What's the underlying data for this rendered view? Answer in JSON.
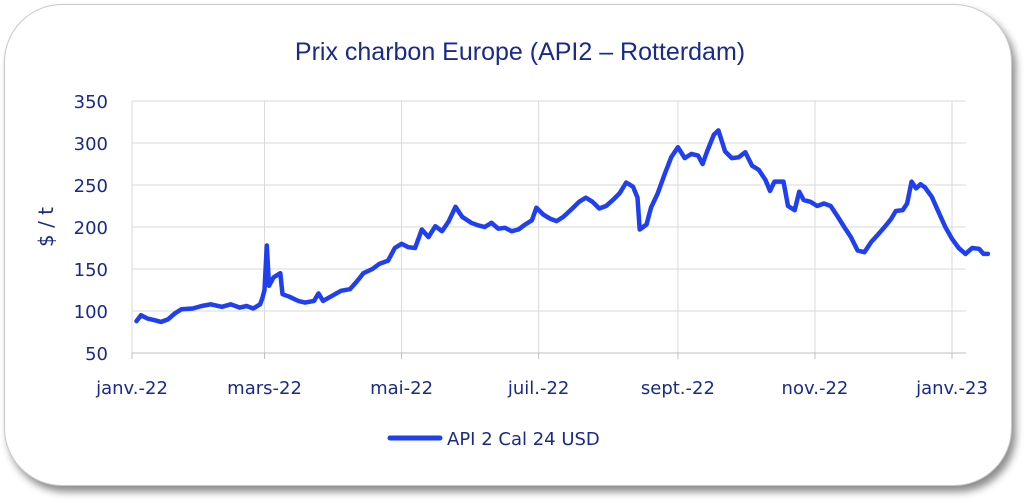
{
  "chart_data": {
    "type": "line",
    "title": "Prix charbon Europe (API2 – Rotterdam)",
    "ylabel": "$ / t",
    "xlabel": "",
    "ylim": [
      50,
      350
    ],
    "yticks": [
      50,
      100,
      150,
      200,
      250,
      300,
      350
    ],
    "xlim": [
      "2022-01-01",
      "2023-01-05"
    ],
    "xticks": [
      {
        "date": "2022-01-01",
        "label": "janv.-22"
      },
      {
        "date": "2022-03-01",
        "label": "mars-22"
      },
      {
        "date": "2022-05-01",
        "label": "mai-22"
      },
      {
        "date": "2022-07-01",
        "label": "juil.-22"
      },
      {
        "date": "2022-09-01",
        "label": "sept.-22"
      },
      {
        "date": "2022-11-01",
        "label": "nov.-22"
      },
      {
        "date": "2023-01-01",
        "label": "janv.-23"
      }
    ],
    "grid": "vertical and horizontal",
    "legend_position": "bottom",
    "series": [
      {
        "name": "API 2 Cal 24 USD",
        "color": "#1f3ff0",
        "points": [
          [
            "2022-01-03",
            88
          ],
          [
            "2022-01-05",
            95
          ],
          [
            "2022-01-08",
            91
          ],
          [
            "2022-01-11",
            89
          ],
          [
            "2022-01-14",
            87
          ],
          [
            "2022-01-17",
            90
          ],
          [
            "2022-01-20",
            97
          ],
          [
            "2022-01-23",
            102
          ],
          [
            "2022-01-28",
            103
          ],
          [
            "2022-02-01",
            106
          ],
          [
            "2022-02-05",
            108
          ],
          [
            "2022-02-10",
            105
          ],
          [
            "2022-02-14",
            108
          ],
          [
            "2022-02-18",
            104
          ],
          [
            "2022-02-21",
            106
          ],
          [
            "2022-02-24",
            103
          ],
          [
            "2022-02-27",
            108
          ],
          [
            "2022-02-28",
            115
          ],
          [
            "2022-03-01",
            125
          ],
          [
            "2022-03-02",
            178
          ],
          [
            "2022-03-03",
            130
          ],
          [
            "2022-03-05",
            140
          ],
          [
            "2022-03-08",
            145
          ],
          [
            "2022-03-09",
            120
          ],
          [
            "2022-03-12",
            117
          ],
          [
            "2022-03-16",
            112
          ],
          [
            "2022-03-19",
            110
          ],
          [
            "2022-03-23",
            112
          ],
          [
            "2022-03-25",
            121
          ],
          [
            "2022-03-27",
            112
          ],
          [
            "2022-03-31",
            118
          ],
          [
            "2022-04-04",
            124
          ],
          [
            "2022-04-08",
            126
          ],
          [
            "2022-04-11",
            135
          ],
          [
            "2022-04-14",
            145
          ],
          [
            "2022-04-18",
            150
          ],
          [
            "2022-04-21",
            156
          ],
          [
            "2022-04-25",
            160
          ],
          [
            "2022-04-28",
            175
          ],
          [
            "2022-05-01",
            180
          ],
          [
            "2022-05-04",
            176
          ],
          [
            "2022-05-07",
            175
          ],
          [
            "2022-05-10",
            197
          ],
          [
            "2022-05-13",
            188
          ],
          [
            "2022-05-16",
            201
          ],
          [
            "2022-05-19",
            195
          ],
          [
            "2022-05-22",
            207
          ],
          [
            "2022-05-25",
            224
          ],
          [
            "2022-05-28",
            212
          ],
          [
            "2022-06-01",
            205
          ],
          [
            "2022-06-04",
            202
          ],
          [
            "2022-06-07",
            200
          ],
          [
            "2022-06-10",
            205
          ],
          [
            "2022-06-13",
            198
          ],
          [
            "2022-06-16",
            199
          ],
          [
            "2022-06-19",
            195
          ],
          [
            "2022-06-22",
            197
          ],
          [
            "2022-06-25",
            203
          ],
          [
            "2022-06-28",
            208
          ],
          [
            "2022-06-30",
            223
          ],
          [
            "2022-07-03",
            215
          ],
          [
            "2022-07-06",
            210
          ],
          [
            "2022-07-09",
            207
          ],
          [
            "2022-07-12",
            212
          ],
          [
            "2022-07-16",
            222
          ],
          [
            "2022-07-19",
            230
          ],
          [
            "2022-07-22",
            235
          ],
          [
            "2022-07-25",
            230
          ],
          [
            "2022-07-28",
            222
          ],
          [
            "2022-07-31",
            225
          ],
          [
            "2022-08-03",
            232
          ],
          [
            "2022-08-06",
            240
          ],
          [
            "2022-08-09",
            253
          ],
          [
            "2022-08-12",
            248
          ],
          [
            "2022-08-14",
            235
          ],
          [
            "2022-08-15",
            197
          ],
          [
            "2022-08-18",
            203
          ],
          [
            "2022-08-20",
            223
          ],
          [
            "2022-08-23",
            240
          ],
          [
            "2022-08-26",
            262
          ],
          [
            "2022-08-29",
            283
          ],
          [
            "2022-09-01",
            295
          ],
          [
            "2022-09-04",
            282
          ],
          [
            "2022-09-07",
            287
          ],
          [
            "2022-09-10",
            285
          ],
          [
            "2022-09-12",
            275
          ],
          [
            "2022-09-14",
            290
          ],
          [
            "2022-09-17",
            310
          ],
          [
            "2022-09-19",
            315
          ],
          [
            "2022-09-22",
            290
          ],
          [
            "2022-09-25",
            282
          ],
          [
            "2022-09-28",
            283
          ],
          [
            "2022-10-01",
            289
          ],
          [
            "2022-10-04",
            273
          ],
          [
            "2022-10-07",
            268
          ],
          [
            "2022-10-10",
            256
          ],
          [
            "2022-10-12",
            243
          ],
          [
            "2022-10-14",
            254
          ],
          [
            "2022-10-18",
            254
          ],
          [
            "2022-10-20",
            225
          ],
          [
            "2022-10-23",
            220
          ],
          [
            "2022-10-25",
            242
          ],
          [
            "2022-10-27",
            232
          ],
          [
            "2022-10-30",
            230
          ],
          [
            "2022-11-02",
            225
          ],
          [
            "2022-11-05",
            228
          ],
          [
            "2022-11-08",
            225
          ],
          [
            "2022-11-11",
            213
          ],
          [
            "2022-11-14",
            200
          ],
          [
            "2022-11-17",
            188
          ],
          [
            "2022-11-20",
            172
          ],
          [
            "2022-11-23",
            170
          ],
          [
            "2022-11-26",
            182
          ],
          [
            "2022-11-29",
            191
          ],
          [
            "2022-12-02",
            200
          ],
          [
            "2022-12-05",
            210
          ],
          [
            "2022-12-07",
            219
          ],
          [
            "2022-12-10",
            220
          ],
          [
            "2022-12-12",
            228
          ],
          [
            "2022-12-14",
            254
          ],
          [
            "2022-12-16",
            246
          ],
          [
            "2022-12-18",
            251
          ],
          [
            "2022-12-20",
            247
          ],
          [
            "2022-12-23",
            236
          ],
          [
            "2022-12-26",
            218
          ],
          [
            "2022-12-29",
            200
          ],
          [
            "2023-01-01",
            186
          ],
          [
            "2023-01-04",
            175
          ],
          [
            "2023-01-07",
            168
          ],
          [
            "2023-01-10",
            175
          ],
          [
            "2023-01-13",
            174
          ],
          [
            "2023-01-15",
            168
          ],
          [
            "2023-01-17",
            168
          ]
        ]
      }
    ]
  }
}
